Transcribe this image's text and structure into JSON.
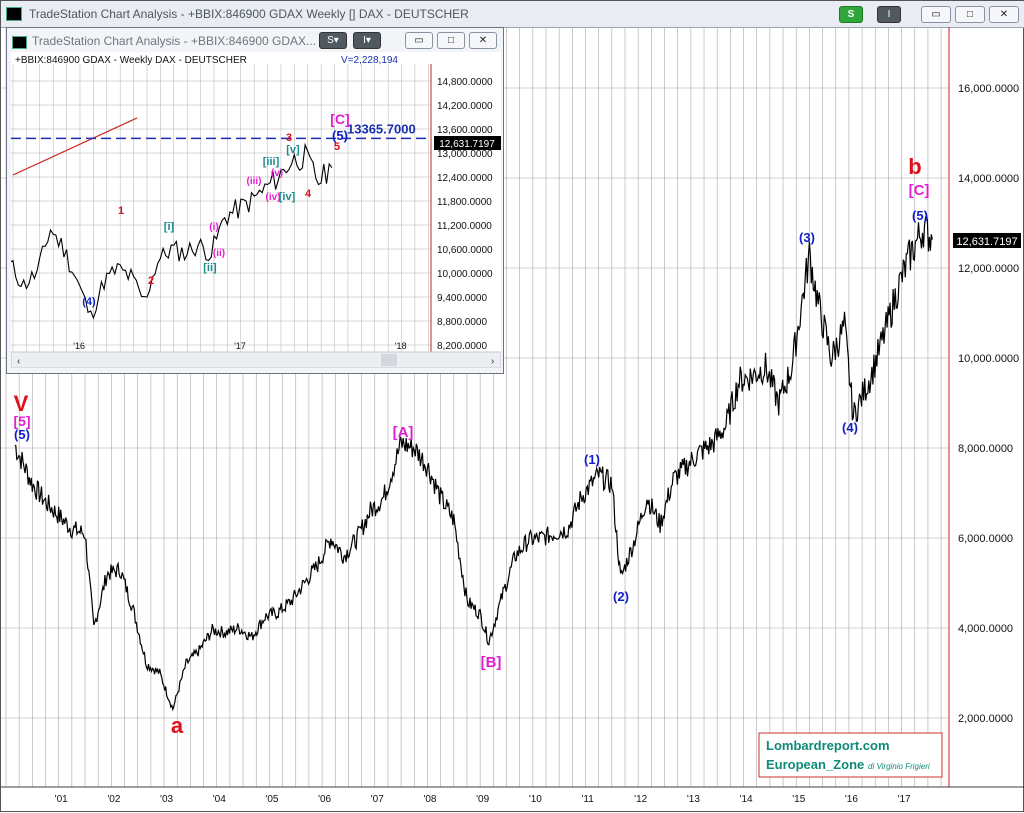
{
  "window": {
    "title": "TradeStation Chart Analysis - +BBIX:846900 GDAX Weekly [] DAX - DEUTSCHER",
    "btn_s": "S",
    "btn_pin": "I",
    "btn_min": "▭",
    "btn_restore": "□",
    "btn_close": "✕"
  },
  "inset": {
    "title": "TradeStation Chart Analysis - +BBIX:846900 GDAX...",
    "header_left": "+BBIX:846900 GDAX - Weekly  DAX - DEUTSCHER",
    "header_volume": "V=2,228,194",
    "target_label": "13365.7000",
    "last_price": "12,631.7197"
  },
  "watermark": {
    "line1": "Lombardreport.com",
    "line2": "European_Zone",
    "line2_suffix": "di Virginio Frigieri"
  },
  "colors": {
    "price_line": "#000000",
    "wave_red": "#e0101a",
    "wave_blue": "#1020c8",
    "wave_magenta": "#e020d0",
    "wave_teal": "#1a8a8a",
    "target_line": "#1a2fb0",
    "grid": "#9a9a9a",
    "watermark_teal": "#0f8a78"
  },
  "chart_data": [
    {
      "type": "line",
      "title": "+BBIX:846900 GDAX Weekly [] DAX - DEUTSCHER",
      "x": [
        "2000-03",
        "2000-07",
        "2000-10",
        "2001-01",
        "2001-04",
        "2001-07",
        "2001-09",
        "2001-12",
        "2002-03",
        "2002-06",
        "2002-09",
        "2002-12",
        "2003-03",
        "2003-06",
        "2003-09",
        "2003-12",
        "2004-03",
        "2004-06",
        "2004-09",
        "2004-12",
        "2005-03",
        "2005-06",
        "2005-09",
        "2005-12",
        "2006-03",
        "2006-06",
        "2006-09",
        "2006-12",
        "2007-03",
        "2007-07",
        "2007-10",
        "2008-01",
        "2008-04",
        "2008-07",
        "2008-10",
        "2009-01",
        "2009-03",
        "2009-06",
        "2009-09",
        "2009-12",
        "2010-03",
        "2010-06",
        "2010-09",
        "2010-12",
        "2011-04",
        "2011-07",
        "2011-09",
        "2011-12",
        "2012-03",
        "2012-06",
        "2012-09",
        "2012-12",
        "2013-03",
        "2013-06",
        "2013-09",
        "2013-12",
        "2014-03",
        "2014-06",
        "2014-09",
        "2014-12",
        "2015-04",
        "2015-06",
        "2015-09",
        "2015-12",
        "2016-02",
        "2016-06",
        "2016-09",
        "2016-12",
        "2017-03",
        "2017-06",
        "2017-08"
      ],
      "values": [
        8065,
        7200,
        6800,
        6500,
        6200,
        6100,
        4000,
        5200,
        5300,
        4400,
        3200,
        3000,
        2200,
        3200,
        3500,
        3950,
        3900,
        4000,
        3800,
        4250,
        4350,
        4600,
        5000,
        5400,
        6000,
        5600,
        6000,
        6600,
        6900,
        8100,
        8000,
        7600,
        6900,
        6400,
        4600,
        4300,
        3700,
        4700,
        5600,
        5950,
        6000,
        6100,
        6200,
        6900,
        7400,
        7200,
        5100,
        5900,
        6900,
        6300,
        7300,
        7600,
        7900,
        8100,
        8500,
        9500,
        9600,
        9800,
        9000,
        9800,
        12300,
        11200,
        10000,
        10700,
        8700,
        9600,
        10500,
        11500,
        12300,
        12900,
        12631.7197
      ],
      "ylim": [
        1000,
        17000
      ],
      "y_ticks": [
        "2,000.0000",
        "4,000.0000",
        "6,000.0000",
        "8,000.0000",
        "10,000.0000",
        "12,000.0000",
        "14,000.0000",
        "16,000.0000"
      ],
      "x_ticks": [
        "'01",
        "'02",
        "'03",
        "'04",
        "'05",
        "'06",
        "'07",
        "'08",
        "'09",
        "'10",
        "'11",
        "'12",
        "'13",
        "'14",
        "'15",
        "'16",
        "'17"
      ],
      "last_value_label": "12,631.7197",
      "annotations": [
        {
          "text": "V",
          "color": "red",
          "at": "2000-03"
        },
        {
          "text": "[5]",
          "color": "magenta",
          "at": "2000-03"
        },
        {
          "text": "(5)",
          "color": "blue",
          "at": "2000-03"
        },
        {
          "text": "a",
          "color": "red",
          "at": "2003-03"
        },
        {
          "text": "[A]",
          "color": "magenta",
          "at": "2007-07"
        },
        {
          "text": "[B]",
          "color": "magenta",
          "at": "2009-03"
        },
        {
          "text": "(1)",
          "color": "blue",
          "at": "2011-04"
        },
        {
          "text": "(2)",
          "color": "blue",
          "at": "2011-09"
        },
        {
          "text": "(3)",
          "color": "blue",
          "at": "2015-04"
        },
        {
          "text": "(4)",
          "color": "blue",
          "at": "2016-02"
        },
        {
          "text": "(5)",
          "color": "blue",
          "at": "2017-06"
        },
        {
          "text": "[C]",
          "color": "magenta",
          "at": "2017-06"
        },
        {
          "text": "b",
          "color": "red",
          "at": "2017-06"
        }
      ],
      "grid": true
    },
    {
      "type": "line",
      "title": "+BBIX:846900 GDAX - Weekly  DAX - DEUTSCHER",
      "x": [
        "2015-08",
        "2015-09",
        "2015-10",
        "2015-11",
        "2015-12",
        "2016-01",
        "2016-02",
        "2016-03",
        "2016-04",
        "2016-05",
        "2016-06",
        "2016-07",
        "2016-08",
        "2016-09",
        "2016-10",
        "2016-11",
        "2016-12",
        "2017-01",
        "2017-02",
        "2017-03",
        "2017-04",
        "2017-05",
        "2017-06",
        "2017-07",
        "2017-08"
      ],
      "values": [
        10200,
        9700,
        10000,
        11100,
        10600,
        9800,
        8900,
        9800,
        10100,
        9900,
        9300,
        10300,
        10600,
        10500,
        10700,
        10500,
        11400,
        11600,
        11800,
        12100,
        12400,
        12800,
        12900,
        12300,
        12631.7197
      ],
      "ylim": [
        7900,
        15200
      ],
      "y_ticks": [
        "8,200.0000",
        "8,800.0000",
        "9,400.0000",
        "10,000.0000",
        "10,600.0000",
        "11,200.0000",
        "11,800.0000",
        "12,400.0000",
        "13,000.0000",
        "13,600.0000",
        "14,200.0000",
        "14,800.0000"
      ],
      "x_ticks": [
        "'16",
        "'17",
        "'18"
      ],
      "reference_line": 13365.7,
      "last_value_label": "12,631.7197",
      "annotations": [
        {
          "text": "(4)",
          "color": "blue"
        },
        {
          "text": "1",
          "color": "red"
        },
        {
          "text": "2",
          "color": "red"
        },
        {
          "text": "[i]",
          "color": "teal"
        },
        {
          "text": "[ii]",
          "color": "teal"
        },
        {
          "text": "(i)",
          "color": "magenta"
        },
        {
          "text": "(ii)",
          "color": "magenta"
        },
        {
          "text": "(iii)",
          "color": "magenta"
        },
        {
          "text": "(iv)",
          "color": "magenta"
        },
        {
          "text": "(v)",
          "color": "magenta"
        },
        {
          "text": "[iii]",
          "color": "teal"
        },
        {
          "text": "[iv]",
          "color": "teal"
        },
        {
          "text": "[v]",
          "color": "teal"
        },
        {
          "text": "3",
          "color": "red"
        },
        {
          "text": "4",
          "color": "red"
        },
        {
          "text": "5",
          "color": "red"
        },
        {
          "text": "(5)",
          "color": "blue"
        },
        {
          "text": "[C]",
          "color": "magenta"
        }
      ],
      "grid": true
    }
  ]
}
